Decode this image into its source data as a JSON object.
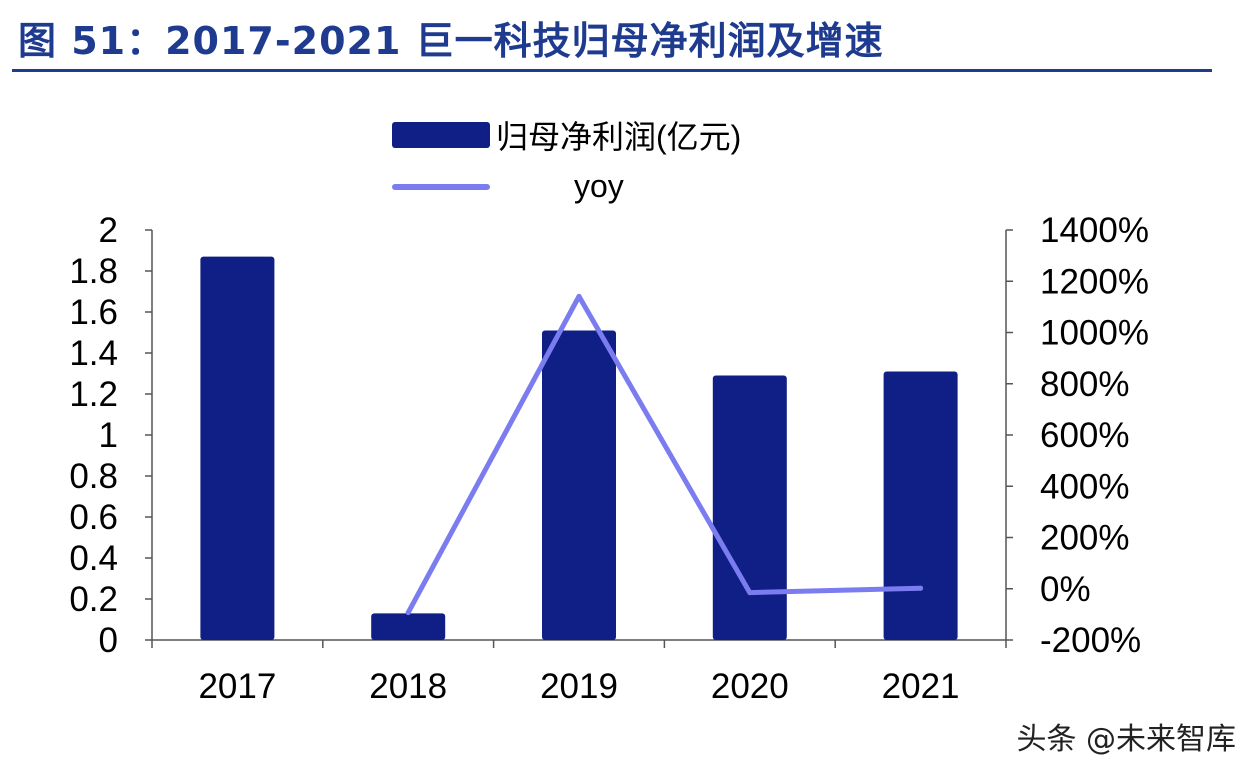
{
  "title": "图 51：2017-2021 巨一科技归母净利润及增速",
  "legend": {
    "bar_label": "归母净利润(亿元)",
    "line_label": "yoy"
  },
  "watermark": "头条 @未来智库",
  "colors": {
    "bar": "#0f1f86",
    "line": "#7b7cf0",
    "title": "#1f3b8f",
    "axis": "#555555"
  },
  "chart_data": {
    "type": "bar",
    "categories": [
      "2017",
      "2018",
      "2019",
      "2020",
      "2021"
    ],
    "series": [
      {
        "name": "归母净利润(亿元)",
        "type": "bar",
        "axis": "left",
        "values": [
          1.87,
          0.13,
          1.51,
          1.29,
          1.31
        ]
      },
      {
        "name": "yoy",
        "type": "line",
        "axis": "right",
        "values": [
          null,
          -93,
          1141,
          -15,
          2
        ]
      }
    ],
    "y_left": {
      "ylim": [
        0,
        2
      ],
      "ticks": [
        "0",
        "0.2",
        "0.4",
        "0.6",
        "0.8",
        "1",
        "1.2",
        "1.4",
        "1.6",
        "1.8",
        "2"
      ]
    },
    "y_right": {
      "ylim": [
        -200,
        1400
      ],
      "ticks": [
        "-200%",
        "0%",
        "200%",
        "400%",
        "600%",
        "800%",
        "1000%",
        "1200%",
        "1400%"
      ]
    },
    "grid": false,
    "legend_position": "top-center"
  }
}
